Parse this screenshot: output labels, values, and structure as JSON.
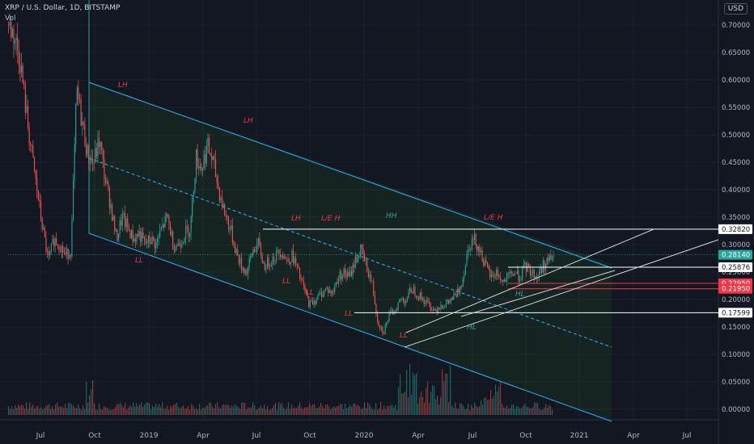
{
  "header": {
    "symbol": "XRP / U.S. Dollar, 1D, BITSTAMP",
    "volume_label": "Vol",
    "currency_button": "USD"
  },
  "colors": {
    "background": "#131722",
    "up": "#26a69a",
    "down": "#ef5350",
    "channel": "#29b6f6",
    "label_red": "#f23645",
    "label_teal": "#26a69a",
    "price_tag": "#26a69a",
    "support_tag": "#f23645"
  },
  "chart_data": {
    "type": "candlestick",
    "symbol": "XRP / U.S. Dollar",
    "interval": "1D",
    "exchange": "BITSTAMP",
    "ylim": [
      -0.02,
      0.72
    ],
    "y_ticks": [
      "0.70000",
      "0.65000",
      "0.60000",
      "0.55000",
      "0.50000",
      "0.45000",
      "0.40000",
      "0.35000",
      "0.30000",
      "0.25000",
      "0.20000",
      "0.15000",
      "0.10000",
      "0.05000",
      "0.00000"
    ],
    "x_ticks": [
      "Jul",
      "Oct",
      "2019",
      "Apr",
      "Jul",
      "Oct",
      "2020",
      "Apr",
      "Jul",
      "Oct",
      "2021",
      "Apr",
      "Jul"
    ],
    "last_price": "0.28140",
    "levels": [
      {
        "label": "0.32820",
        "value": 0.3282
      },
      {
        "label": "0.25876",
        "value": 0.25876
      },
      {
        "label": "0.22950",
        "value": 0.2295
      },
      {
        "label": "0.21950",
        "value": 0.2195
      },
      {
        "label": "0.17599",
        "value": 0.17599
      }
    ],
    "price_path": [
      [
        0,
        0.7
      ],
      [
        2,
        0.68
      ],
      [
        4,
        0.64
      ],
      [
        5,
        0.55
      ],
      [
        6,
        0.47
      ],
      [
        7,
        0.4
      ],
      [
        8,
        0.33
      ],
      [
        9,
        0.27
      ],
      [
        10,
        0.31
      ],
      [
        11,
        0.3
      ],
      [
        12,
        0.28
      ],
      [
        13,
        0.29
      ],
      [
        14,
        0.58
      ],
      [
        15,
        0.52
      ],
      [
        16,
        0.46
      ],
      [
        17,
        0.45
      ],
      [
        18,
        0.49
      ],
      [
        19,
        0.42
      ],
      [
        20,
        0.37
      ],
      [
        21,
        0.31
      ],
      [
        22,
        0.35
      ],
      [
        23,
        0.33
      ],
      [
        24,
        0.31
      ],
      [
        25,
        0.32
      ],
      [
        26,
        0.3
      ],
      [
        27,
        0.31
      ],
      [
        28,
        0.3
      ],
      [
        29,
        0.33
      ],
      [
        30,
        0.35
      ],
      [
        31,
        0.3
      ],
      [
        32,
        0.3
      ],
      [
        33,
        0.32
      ],
      [
        34,
        0.33
      ],
      [
        35,
        0.46
      ],
      [
        36,
        0.44
      ],
      [
        37,
        0.48
      ],
      [
        38,
        0.45
      ],
      [
        39,
        0.4
      ],
      [
        40,
        0.36
      ],
      [
        41,
        0.33
      ],
      [
        42,
        0.29
      ],
      [
        43,
        0.26
      ],
      [
        44,
        0.25
      ],
      [
        45,
        0.29
      ],
      [
        46,
        0.3
      ],
      [
        47,
        0.26
      ],
      [
        48,
        0.27
      ],
      [
        49,
        0.28
      ],
      [
        50,
        0.29
      ],
      [
        51,
        0.27
      ],
      [
        52,
        0.28
      ],
      [
        53,
        0.25
      ],
      [
        54,
        0.22
      ],
      [
        55,
        0.19
      ],
      [
        56,
        0.2
      ],
      [
        57,
        0.21
      ],
      [
        58,
        0.22
      ],
      [
        59,
        0.21
      ],
      [
        60,
        0.24
      ],
      [
        61,
        0.25
      ],
      [
        62,
        0.24
      ],
      [
        63,
        0.27
      ],
      [
        64,
        0.29
      ],
      [
        65,
        0.26
      ],
      [
        66,
        0.23
      ],
      [
        67,
        0.16
      ],
      [
        68,
        0.14
      ],
      [
        69,
        0.17
      ],
      [
        70,
        0.18
      ],
      [
        71,
        0.2
      ],
      [
        72,
        0.2
      ],
      [
        73,
        0.22
      ],
      [
        74,
        0.21
      ],
      [
        75,
        0.2
      ],
      [
        76,
        0.19
      ],
      [
        77,
        0.18
      ],
      [
        78,
        0.19
      ],
      [
        79,
        0.19
      ],
      [
        80,
        0.2
      ],
      [
        81,
        0.21
      ],
      [
        82,
        0.24
      ],
      [
        83,
        0.3
      ],
      [
        84,
        0.31
      ],
      [
        85,
        0.29
      ],
      [
        86,
        0.26
      ],
      [
        87,
        0.24
      ],
      [
        88,
        0.25
      ],
      [
        89,
        0.23
      ],
      [
        90,
        0.24
      ],
      [
        91,
        0.25
      ],
      [
        92,
        0.24
      ],
      [
        93,
        0.26
      ],
      [
        94,
        0.25
      ],
      [
        95,
        0.24
      ],
      [
        96,
        0.26
      ],
      [
        97,
        0.27
      ],
      [
        98,
        0.28
      ]
    ],
    "annotations": [
      {
        "text": "LH",
        "color": "red"
      },
      {
        "text": "LL",
        "color": "red"
      },
      {
        "text": "LH",
        "color": "red"
      },
      {
        "text": "LH",
        "color": "red"
      },
      {
        "text": "L/E H",
        "color": "red"
      },
      {
        "text": "LL",
        "color": "red"
      },
      {
        "text": "LL",
        "color": "red"
      },
      {
        "text": "LL",
        "color": "red"
      },
      {
        "text": "HH",
        "color": "teal"
      },
      {
        "text": "LL",
        "color": "red"
      },
      {
        "text": "HL",
        "color": "teal"
      },
      {
        "text": "L/E H",
        "color": "red"
      },
      {
        "text": "HL",
        "color": "teal"
      }
    ]
  }
}
